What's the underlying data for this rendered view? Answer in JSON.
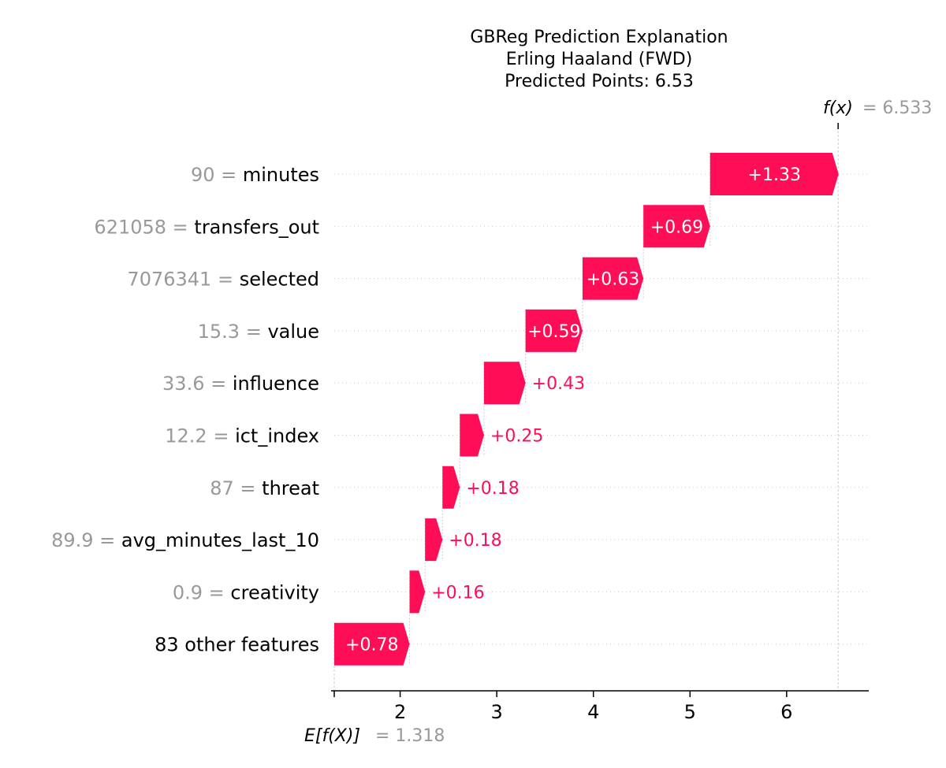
{
  "chart_data": {
    "type": "waterfall",
    "title": [
      "GBReg Prediction Explanation",
      "Erling Haaland (FWD)",
      "Predicted Points: 6.53"
    ],
    "base_value": 1.318,
    "base_label": "E[f(X)]",
    "base_value_text": "= 1.318",
    "output_value": 6.533,
    "output_label": "f(x)",
    "output_value_text": "= 6.533",
    "features": [
      {
        "value": "90",
        "name": "minutes",
        "contribution": 1.33,
        "label": "+1.33"
      },
      {
        "value": "621058",
        "name": "transfers_out",
        "contribution": 0.69,
        "label": "+0.69"
      },
      {
        "value": "7076341",
        "name": "selected",
        "contribution": 0.63,
        "label": "+0.63"
      },
      {
        "value": "15.3",
        "name": "value",
        "contribution": 0.59,
        "label": "+0.59"
      },
      {
        "value": "33.6",
        "name": "influence",
        "contribution": 0.43,
        "label": "+0.43"
      },
      {
        "value": "12.2",
        "name": "ict_index",
        "contribution": 0.25,
        "label": "+0.25"
      },
      {
        "value": "87",
        "name": "threat",
        "contribution": 0.18,
        "label": "+0.18"
      },
      {
        "value": "89.9",
        "name": "avg_minutes_last_10",
        "contribution": 0.18,
        "label": "+0.18"
      },
      {
        "value": "0.9",
        "name": "creativity",
        "contribution": 0.16,
        "label": "+0.16"
      },
      {
        "value": "",
        "name": "83 other features",
        "contribution": 0.78,
        "label": "+0.78"
      }
    ],
    "xticks": [
      2,
      3,
      4,
      5,
      6
    ],
    "xlim": [
      1.318,
      6.85
    ],
    "colors": {
      "positive": "#ff0d57",
      "label_inside": "#ffffff",
      "feature_value": "#999999",
      "feature_name": "#000000",
      "guide": "#cccccc"
    }
  }
}
